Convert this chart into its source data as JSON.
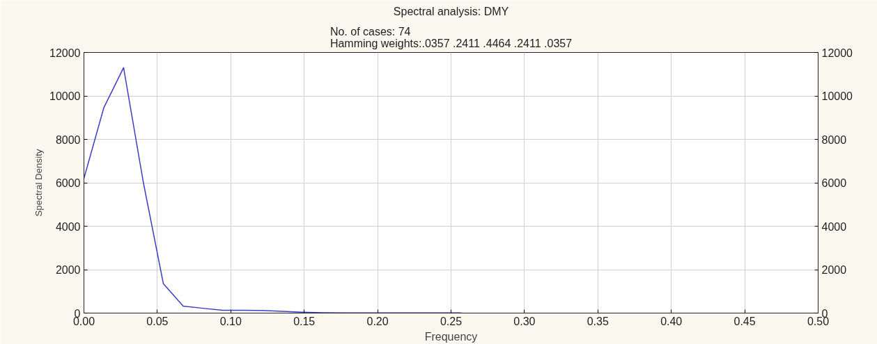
{
  "chart_data": {
    "type": "line",
    "title": "Spectral analysis: DMY",
    "subtitle": "No. of cases: 74\nHamming weights:.0357 .2411 .4464 .2411 .0357",
    "xlabel": "Frequency",
    "ylabel": "Spectral Density",
    "x": [
      0,
      0.0135,
      0.027,
      0.0405,
      0.0541,
      0.0676,
      0.0811,
      0.0946,
      0.1081,
      0.1216,
      0.1351,
      0.1486,
      0.1622,
      0.1757,
      0.1892,
      0.2027,
      0.2162,
      0.2297,
      0.2432,
      0.2568
    ],
    "series": [
      {
        "color": "#3b3bc8",
        "values": [
          6200,
          9450,
          11300,
          6000,
          1350,
          320,
          220,
          130,
          130,
          120,
          80,
          40,
          20,
          10,
          10,
          10,
          10,
          10,
          10,
          10
        ]
      }
    ],
    "xlim": [
      0,
      0.5
    ],
    "xticks": [
      {
        "value": 0,
        "label": "0.00"
      },
      {
        "value": 0.05,
        "label": "0.05"
      },
      {
        "value": 0.1,
        "label": "0.10"
      },
      {
        "value": 0.15,
        "label": "0.15"
      },
      {
        "value": 0.2,
        "label": "0.20"
      },
      {
        "value": 0.25,
        "label": "0.25"
      },
      {
        "value": 0.3,
        "label": "0.30"
      },
      {
        "value": 0.35,
        "label": "0.35"
      },
      {
        "value": 0.4,
        "label": "0.40"
      },
      {
        "value": 0.45,
        "label": "0.45"
      },
      {
        "value": 0.5,
        "label": "0.50"
      }
    ],
    "ylim": [
      0,
      12000
    ],
    "yticks": [
      0,
      2000,
      4000,
      6000,
      8000,
      10000,
      12000
    ],
    "y2lim": [
      0,
      12000
    ],
    "y2ticks": [
      0,
      2000,
      4000,
      6000,
      8000,
      10000,
      12000
    ],
    "grid": true,
    "marker": "none",
    "line_style": "solid"
  }
}
